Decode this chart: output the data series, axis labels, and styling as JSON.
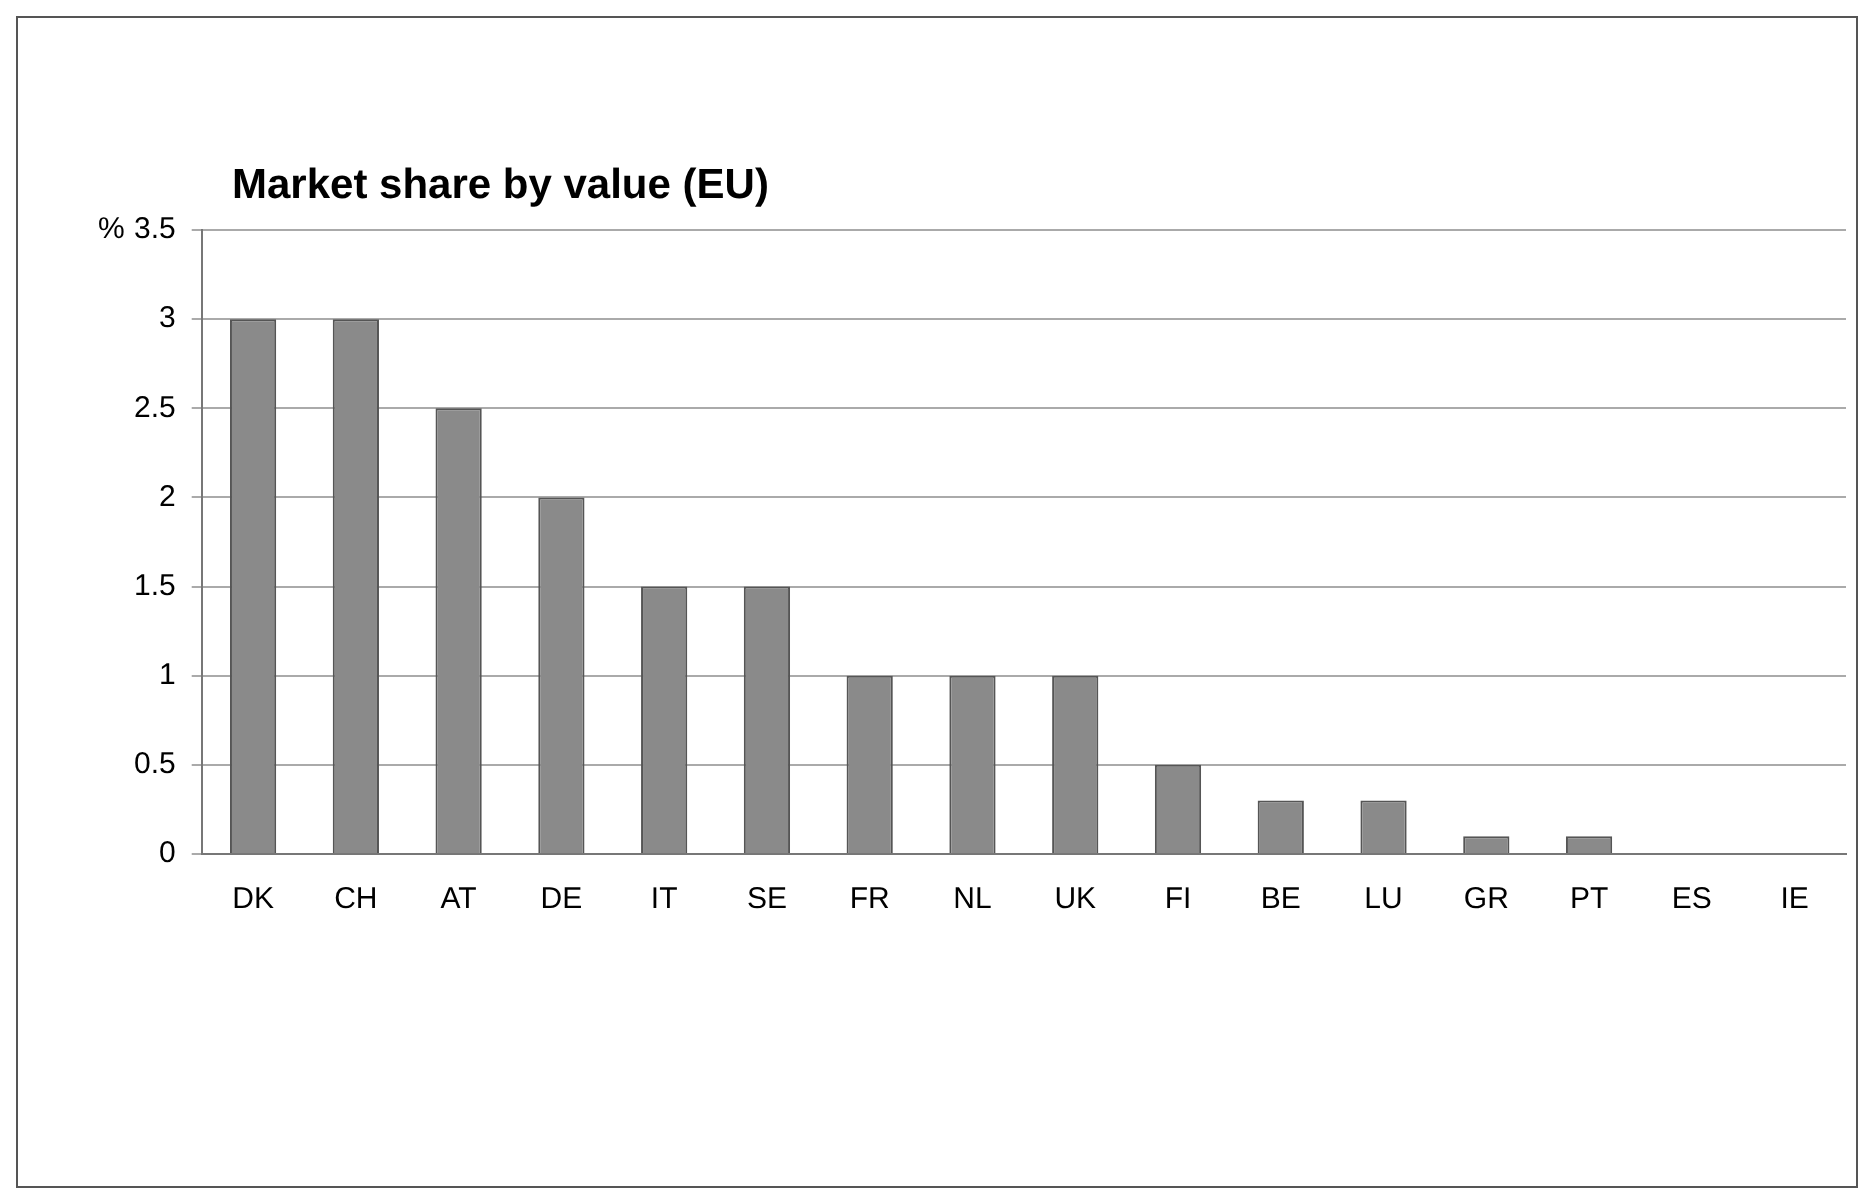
{
  "chart_data": {
    "type": "bar",
    "title": "Market share by value (EU)",
    "ylabel": "%",
    "categories": [
      "DK",
      "CH",
      "AT",
      "DE",
      "IT",
      "SE",
      "FR",
      "NL",
      "UK",
      "FI",
      "BE",
      "LU",
      "GR",
      "PT",
      "ES",
      "IE"
    ],
    "values": [
      3,
      3,
      2.5,
      2,
      1.5,
      1.5,
      1,
      1,
      1,
      0.5,
      0.3,
      0.3,
      0.1,
      0.1,
      0,
      0
    ],
    "color": "#8a8a8a",
    "ylim": [
      0,
      3.5
    ],
    "yticks": [
      0,
      0.5,
      1,
      1.5,
      2,
      2.5,
      3,
      3.5
    ],
    "grid": "y",
    "legend": false
  }
}
